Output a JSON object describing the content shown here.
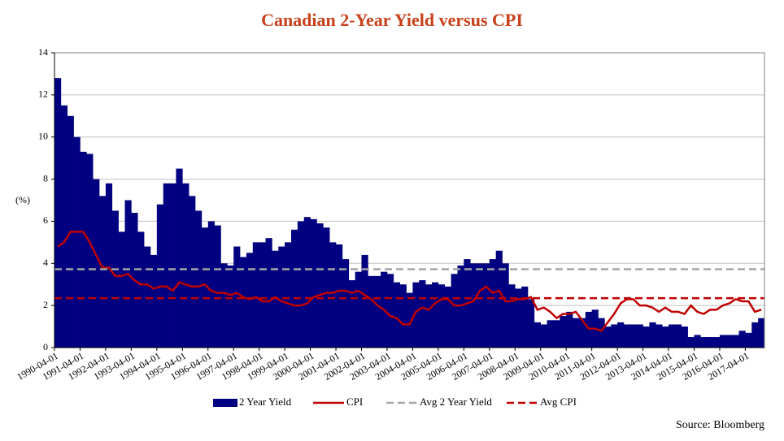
{
  "chart_data": {
    "type": "bar",
    "title": "Canadian 2-Year Yield versus CPI",
    "y_label": "(%)",
    "source": "Source: Bloomberg",
    "categories": [
      "1990-04-01",
      null,
      null,
      null,
      "1991-04-01",
      null,
      null,
      null,
      "1992-04-01",
      null,
      null,
      null,
      "1993-04-01",
      null,
      null,
      null,
      "1994-04-01",
      null,
      null,
      null,
      "1995-04-01",
      null,
      null,
      null,
      "1996-04-01",
      null,
      null,
      null,
      "1997-04-01",
      null,
      null,
      null,
      "1998-04-01",
      null,
      null,
      null,
      "1999-04-01",
      null,
      null,
      null,
      "2000-04-01",
      null,
      null,
      null,
      "2001-04-01",
      null,
      null,
      null,
      "2002-04-01",
      null,
      null,
      null,
      "2003-04-01",
      null,
      null,
      null,
      "2004-04-01",
      null,
      null,
      null,
      "2005-04-01",
      null,
      null,
      null,
      "2006-04-01",
      null,
      null,
      null,
      "2007-04-01",
      null,
      null,
      null,
      "2008-04-01",
      null,
      null,
      null,
      "2009-04-01",
      null,
      null,
      null,
      "2010-04-01",
      null,
      null,
      null,
      "2011-04-01",
      null,
      null,
      null,
      "2012-04-01",
      null,
      null,
      null,
      "2013-04-01",
      null,
      null,
      null,
      "2014-04-01",
      null,
      null,
      null,
      "2015-04-01",
      null,
      null,
      null,
      "2016-04-01",
      null,
      null,
      null,
      "2017-04-01",
      null,
      null
    ],
    "series": [
      {
        "name": "2 Year Yield",
        "type": "bar",
        "color": "#000080",
        "values": [
          12.8,
          11.5,
          11.0,
          10.0,
          9.3,
          9.2,
          8.0,
          7.2,
          7.8,
          6.5,
          5.5,
          7.0,
          6.4,
          5.5,
          4.8,
          4.4,
          6.8,
          7.8,
          7.8,
          8.5,
          7.8,
          7.2,
          6.5,
          5.7,
          6.0,
          5.8,
          4.0,
          3.9,
          4.8,
          4.3,
          4.5,
          5.0,
          5.0,
          5.2,
          4.6,
          4.8,
          5.0,
          5.6,
          6.0,
          6.2,
          6.1,
          5.9,
          5.7,
          5.0,
          4.9,
          4.2,
          3.2,
          3.6,
          4.4,
          3.4,
          3.4,
          3.6,
          3.5,
          3.1,
          3.0,
          2.6,
          3.1,
          3.2,
          3.0,
          3.1,
          3.0,
          2.9,
          3.5,
          3.9,
          4.2,
          4.0,
          4.0,
          4.0,
          4.2,
          4.6,
          4.0,
          3.0,
          2.8,
          2.9,
          2.3,
          1.2,
          1.1,
          1.3,
          1.3,
          1.5,
          1.7,
          1.4,
          1.4,
          1.7,
          1.8,
          1.4,
          1.0,
          1.1,
          1.2,
          1.1,
          1.1,
          1.1,
          1.0,
          1.2,
          1.1,
          1.0,
          1.1,
          1.1,
          1.0,
          0.5,
          0.6,
          0.5,
          0.5,
          0.5,
          0.6,
          0.6,
          0.6,
          0.8,
          0.7,
          1.2,
          1.4
        ]
      },
      {
        "name": "CPI",
        "type": "line",
        "color": "#c00000",
        "values": [
          4.8,
          5.0,
          5.5,
          5.5,
          5.5,
          5.0,
          4.4,
          3.8,
          3.8,
          3.4,
          3.4,
          3.5,
          3.2,
          3.0,
          3.0,
          2.8,
          2.9,
          2.9,
          2.7,
          3.1,
          3.0,
          2.9,
          2.9,
          3.0,
          2.7,
          2.6,
          2.6,
          2.5,
          2.6,
          2.4,
          2.3,
          2.4,
          2.2,
          2.2,
          2.4,
          2.2,
          2.1,
          2.0,
          2.0,
          2.1,
          2.4,
          2.5,
          2.6,
          2.6,
          2.7,
          2.7,
          2.6,
          2.7,
          2.5,
          2.3,
          2.0,
          1.8,
          1.5,
          1.4,
          1.1,
          1.1,
          1.7,
          1.9,
          1.8,
          2.1,
          2.3,
          2.3,
          2.0,
          2.0,
          2.1,
          2.2,
          2.7,
          2.9,
          2.6,
          2.7,
          2.2,
          2.2,
          2.3,
          2.3,
          2.4,
          1.8,
          1.9,
          1.7,
          1.4,
          1.6,
          1.6,
          1.7,
          1.3,
          0.9,
          0.9,
          0.8,
          1.2,
          1.6,
          2.1,
          2.3,
          2.3,
          2.0,
          2.0,
          1.9,
          1.7,
          1.9,
          1.7,
          1.7,
          1.6,
          2.0,
          1.7,
          1.6,
          1.8,
          1.8,
          2.0,
          2.1,
          2.3,
          2.2,
          2.2,
          1.7,
          1.8
        ]
      },
      {
        "name": "Avg 2 Year Yield",
        "type": "hline",
        "color": "#a6a6a6",
        "value": 3.72
      },
      {
        "name": "Avg CPI",
        "type": "hline",
        "color": "#c00000",
        "value": 2.35
      }
    ],
    "ylim": [
      0,
      14
    ],
    "yticks": [
      0,
      2,
      4,
      6,
      8,
      10,
      12,
      14
    ],
    "grid": true
  }
}
